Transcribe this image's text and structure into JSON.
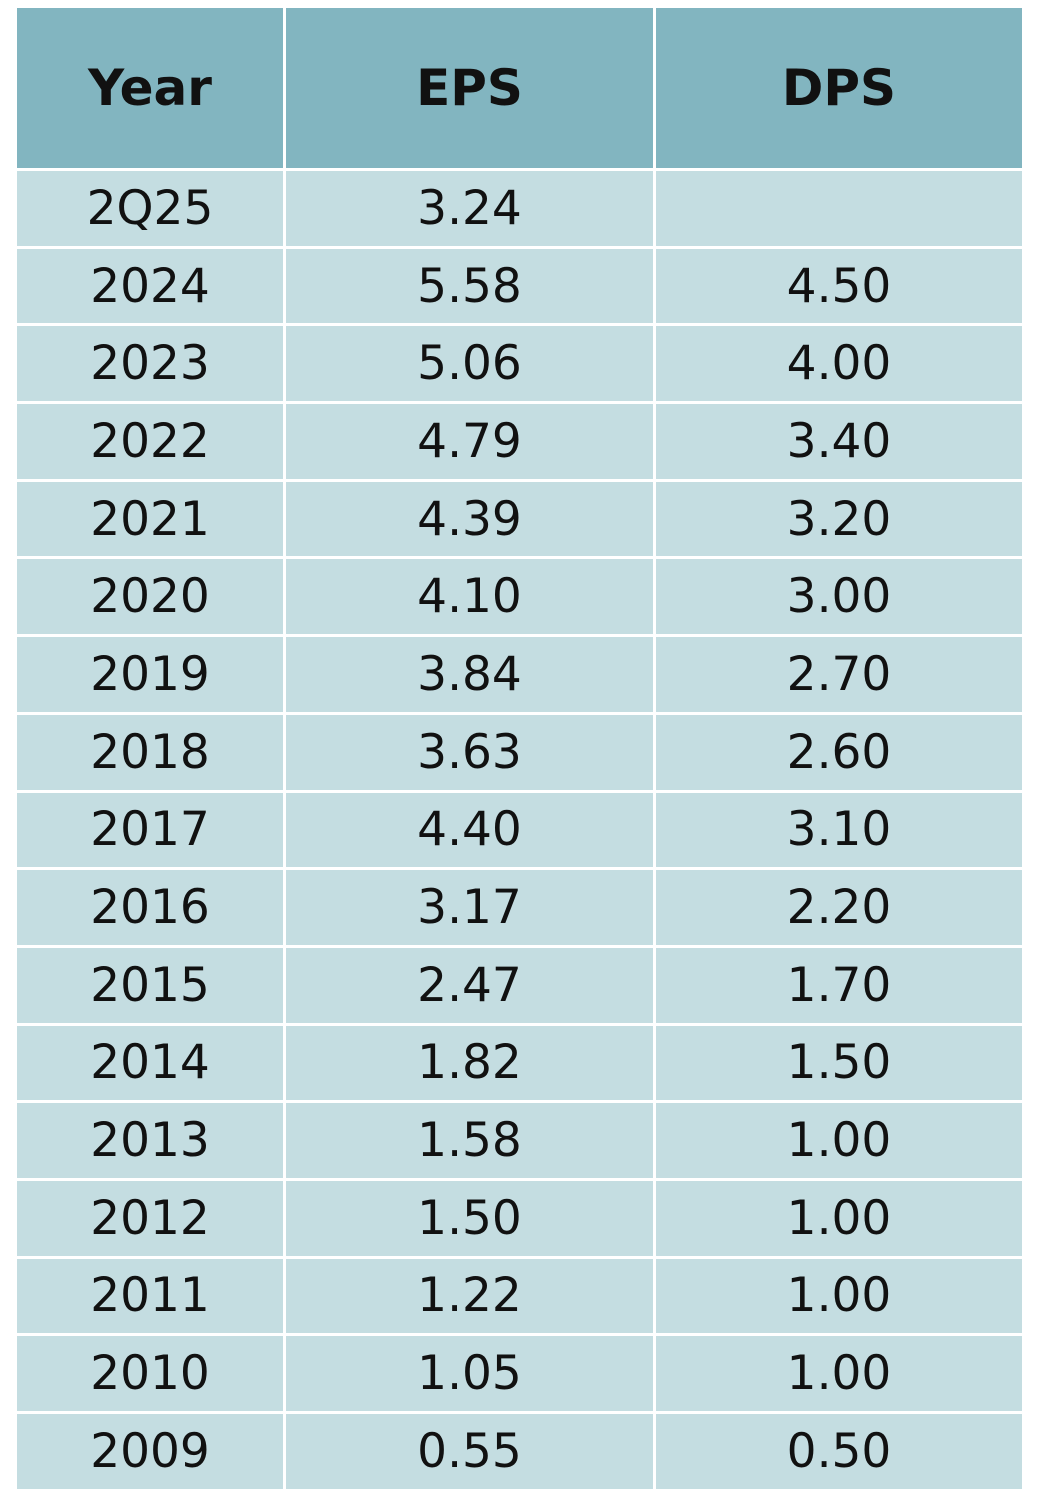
{
  "table": {
    "header": [
      "Year",
      "EPS",
      "DPS"
    ],
    "rows": [
      [
        "2Q25",
        "3.24"
      ],
      [
        "2024",
        "5.58",
        "4.50"
      ],
      [
        "2023",
        "5.06",
        "4.00"
      ],
      [
        "2022",
        "4.79",
        "3.40"
      ],
      [
        "2021",
        "4.39",
        "3.20"
      ],
      [
        "2020",
        "4.10",
        "3.00"
      ],
      [
        "2019",
        "3.84",
        "2.70"
      ],
      [
        "2018",
        "3.63",
        "2.60"
      ],
      [
        "2017",
        "4.40",
        "3.10"
      ],
      [
        "2016",
        "3.17",
        "2.20"
      ],
      [
        "2015",
        "2.47",
        "1.70"
      ],
      [
        "2014",
        "1.82",
        "1.50"
      ],
      [
        "2013",
        "1.58",
        "1.00"
      ],
      [
        "2012",
        "1.50",
        "1.00"
      ],
      [
        "2011",
        "1.22",
        "1.00"
      ],
      [
        "2010",
        "1.05",
        "1.00"
      ],
      [
        "2009",
        "0.55",
        "0.50"
      ]
    ]
  }
}
